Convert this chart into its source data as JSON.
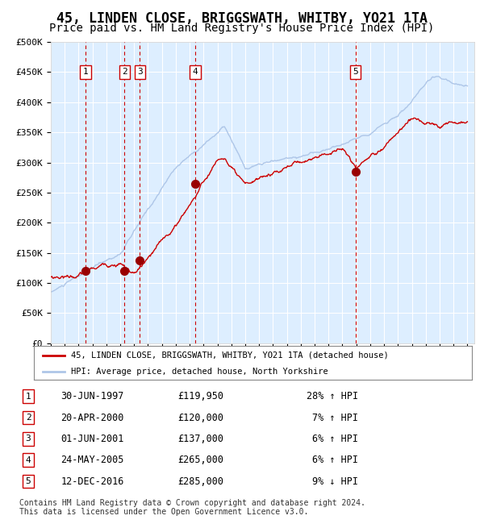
{
  "title": "45, LINDEN CLOSE, BRIGGSWATH, WHITBY, YO21 1TA",
  "subtitle": "Price paid vs. HM Land Registry's House Price Index (HPI)",
  "title_fontsize": 12,
  "subtitle_fontsize": 10,
  "hpi_color": "#aec6e8",
  "price_color": "#cc0000",
  "marker_color": "#990000",
  "bg_color": "#ddeeff",
  "grid_color": "#ffffff",
  "vline_color": "#cc0000",
  "ylim": [
    0,
    500000
  ],
  "yticks": [
    0,
    50000,
    100000,
    150000,
    200000,
    250000,
    300000,
    350000,
    400000,
    450000,
    500000
  ],
  "transactions": [
    {
      "id": 1,
      "year": 1997.5,
      "price": 119950
    },
    {
      "id": 2,
      "year": 2000.3,
      "price": 120000
    },
    {
      "id": 3,
      "year": 2001.41,
      "price": 137000
    },
    {
      "id": 4,
      "year": 2005.39,
      "price": 265000
    },
    {
      "id": 5,
      "year": 2016.94,
      "price": 285000
    }
  ],
  "table_rows": [
    {
      "id": 1,
      "date": "30-JUN-1997",
      "price": "£119,950",
      "pct": "28% ↑ HPI"
    },
    {
      "id": 2,
      "date": "20-APR-2000",
      "price": "£120,000",
      "pct": "7% ↑ HPI"
    },
    {
      "id": 3,
      "date": "01-JUN-2001",
      "price": "£137,000",
      "pct": "6% ↑ HPI"
    },
    {
      "id": 4,
      "date": "24-MAY-2005",
      "price": "£265,000",
      "pct": "6% ↑ HPI"
    },
    {
      "id": 5,
      "date": "12-DEC-2016",
      "price": "£285,000",
      "pct": "9% ↓ HPI"
    }
  ],
  "legend_line1": "45, LINDEN CLOSE, BRIGGSWATH, WHITBY, YO21 1TA (detached house)",
  "legend_line2": "HPI: Average price, detached house, North Yorkshire",
  "footer": "Contains HM Land Registry data © Crown copyright and database right 2024.\nThis data is licensed under the Open Government Licence v3.0."
}
